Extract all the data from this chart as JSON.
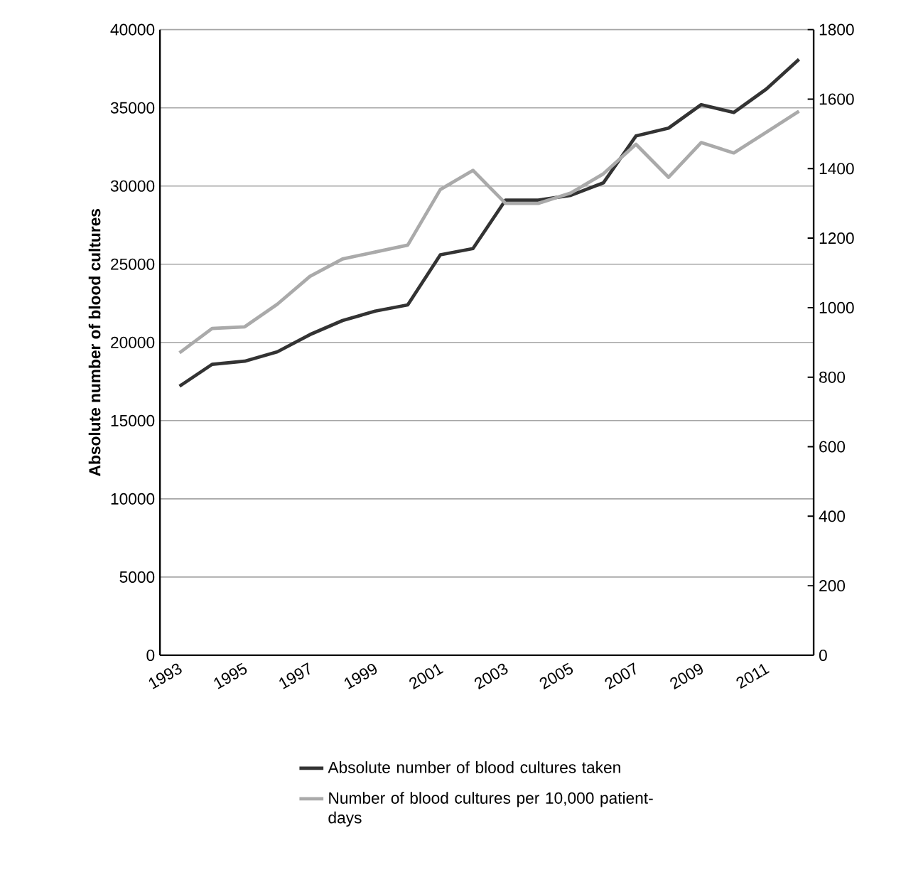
{
  "chart_data": {
    "type": "line",
    "categories": [
      "1993",
      null,
      "1995",
      null,
      "1997",
      null,
      "1999",
      null,
      "2001",
      null,
      "2003",
      null,
      "2005",
      null,
      "2007",
      null,
      "2009",
      null,
      "2011",
      null
    ],
    "ylabel": "Absolute number of blood cultures",
    "ylim": [
      0,
      40000
    ],
    "yticks": [
      0,
      5000,
      10000,
      15000,
      20000,
      25000,
      30000,
      35000,
      40000
    ],
    "y2lim": [
      0,
      1800
    ],
    "y2ticks": [
      0,
      200,
      400,
      600,
      800,
      1000,
      1200,
      1400,
      1600,
      1800
    ],
    "grid": "y",
    "legend": "bottom",
    "line_style": "solid",
    "series": [
      {
        "name": "Absolute number of blood cultures taken",
        "color": "#333333",
        "values": [
          17200,
          18600,
          18800,
          19400,
          20500,
          21400,
          22000,
          22400,
          25600,
          26000,
          29100,
          29100,
          29400,
          30200,
          33200,
          33700,
          35200,
          34700,
          36200,
          38100
        ]
      },
      {
        "name": "Number of blood cultures per 10,000 patient-days",
        "color": "#aaaaaa",
        "axis": "y2",
        "values": [
          870,
          940,
          945,
          1010,
          1090,
          1140,
          1160,
          1180,
          1340,
          1395,
          1300,
          1300,
          1330,
          1385,
          1470,
          1375,
          1475,
          1445,
          1505,
          1565
        ]
      }
    ]
  }
}
